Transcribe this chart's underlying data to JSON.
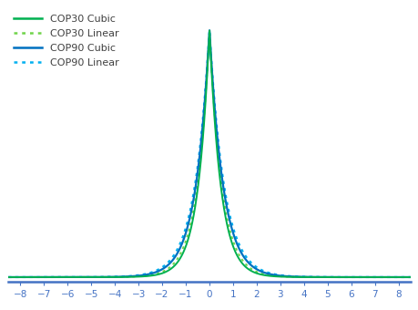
{
  "title": "",
  "xlabel": "",
  "ylabel": "",
  "xlim": [
    -8.5,
    8.5
  ],
  "ylim": [
    -0.02,
    1.08
  ],
  "x_ticks": [
    -8,
    -7,
    -6,
    -5,
    -4,
    -3,
    -2,
    -1,
    0,
    1,
    2,
    3,
    4,
    5,
    6,
    7,
    8
  ],
  "series": [
    {
      "label": "COP30 Cubic",
      "color": "#00b050",
      "linestyle": "solid",
      "linewidth": 1.4,
      "b": 0.48
    },
    {
      "label": "COP30 Linear",
      "color": "#70d44a",
      "linestyle": "dotted",
      "linewidth": 1.4,
      "b": 0.52
    },
    {
      "label": "COP90 Cubic",
      "color": "#0070c0",
      "linestyle": "solid",
      "linewidth": 1.6,
      "b": 0.58
    },
    {
      "label": "COP90 Linear",
      "color": "#00b0f0",
      "linestyle": "dotted",
      "linewidth": 1.6,
      "b": 0.62
    }
  ],
  "legend_colors": [
    "#00b050",
    "#70d44a",
    "#0070c0",
    "#00b0f0"
  ],
  "legend_styles": [
    "solid",
    "dotted",
    "solid",
    "dotted"
  ],
  "legend_labels": [
    "COP30 Cubic",
    "COP30 Linear",
    "COP90 Cubic",
    "COP90 Linear"
  ],
  "background_color": "#ffffff",
  "tick_color": "#4472c4",
  "spine_color": "#4472c4",
  "legend_text_color": "#404040"
}
